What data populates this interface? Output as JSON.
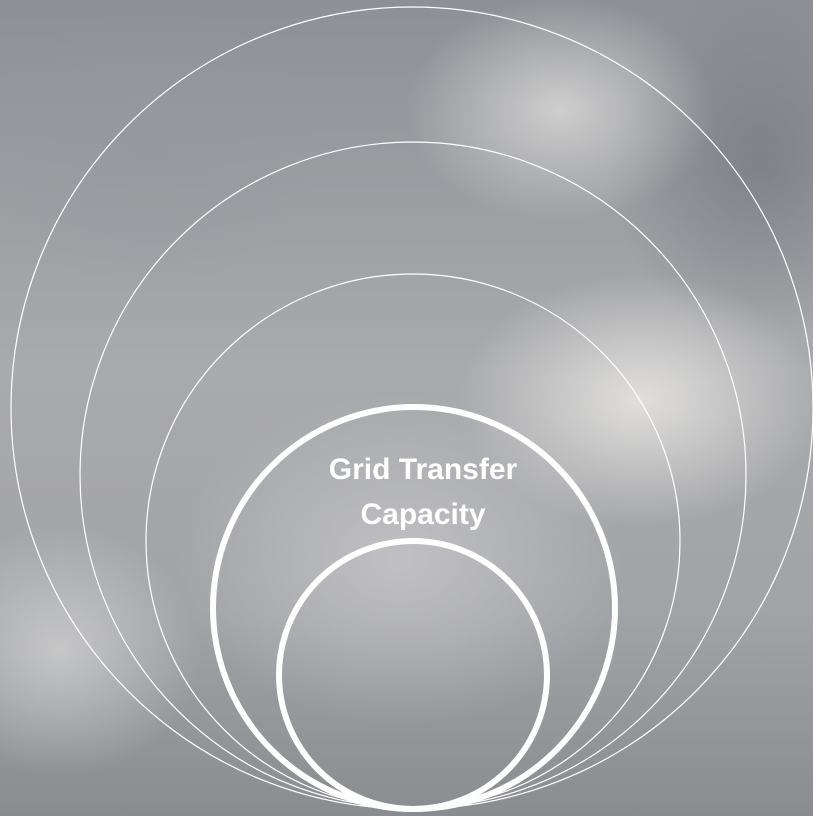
{
  "diagram": {
    "label_lines": [
      "Grid Transfer",
      "Capacity"
    ]
  }
}
